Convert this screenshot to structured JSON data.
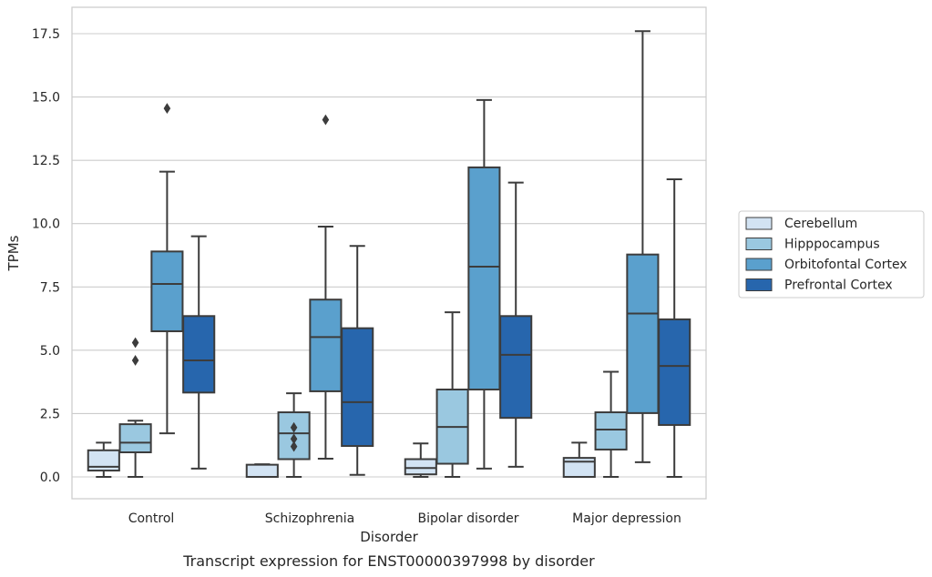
{
  "chart_data": {
    "type": "box",
    "title": "",
    "caption": "Transcript expression for ENST00000397998 by disorder",
    "xlabel": "Disorder",
    "ylabel": "TPMs",
    "ylim": [
      -0.8,
      18.5
    ],
    "yticks": [
      0.0,
      2.5,
      5.0,
      7.5,
      10.0,
      12.5,
      15.0,
      17.5
    ],
    "ytick_labels": [
      "0.0",
      "2.5",
      "5.0",
      "7.5",
      "10.0",
      "12.5",
      "15.0",
      "17.5"
    ],
    "grid": "horizontal",
    "legend_position": "right",
    "categories": [
      "Control",
      "Schizophrenia",
      "Bipolar disorder",
      "Major depression"
    ],
    "series": [
      {
        "name": "Cerebellum",
        "color": "#d2e3f3",
        "boxes": [
          {
            "whisker_low": 0.0,
            "q1": 0.25,
            "median": 0.4,
            "q3": 1.05,
            "whisker_high": 1.35,
            "outliers": []
          },
          {
            "whisker_low": 0.0,
            "q1": 0.0,
            "median": 0.0,
            "q3": 0.48,
            "whisker_high": 0.5,
            "outliers": []
          },
          {
            "whisker_low": 0.0,
            "q1": 0.1,
            "median": 0.35,
            "q3": 0.7,
            "whisker_high": 1.32,
            "outliers": []
          },
          {
            "whisker_low": 0.0,
            "q1": 0.0,
            "median": 0.6,
            "q3": 0.75,
            "whisker_high": 1.35,
            "outliers": []
          }
        ]
      },
      {
        "name": "Hipppocampus",
        "color": "#9ac8e0",
        "boxes": [
          {
            "whisker_low": 0.0,
            "q1": 0.97,
            "median": 1.35,
            "q3": 2.08,
            "whisker_high": 2.22,
            "outliers": [
              4.6,
              5.3
            ]
          },
          {
            "whisker_low": 0.0,
            "q1": 0.7,
            "median": 1.72,
            "q3": 2.55,
            "whisker_high": 3.3,
            "outliers": [
              1.2,
              1.5,
              1.95
            ]
          },
          {
            "whisker_low": 0.0,
            "q1": 0.52,
            "median": 1.97,
            "q3": 3.45,
            "whisker_high": 6.5,
            "outliers": []
          },
          {
            "whisker_low": 0.0,
            "q1": 1.08,
            "median": 1.87,
            "q3": 2.55,
            "whisker_high": 4.15,
            "outliers": []
          }
        ]
      },
      {
        "name": "Orbitofontal Cortex",
        "color": "#5aa0cd",
        "boxes": [
          {
            "whisker_low": 1.72,
            "q1": 5.75,
            "median": 7.62,
            "q3": 8.9,
            "whisker_high": 12.05,
            "outliers": [
              14.55
            ]
          },
          {
            "whisker_low": 0.72,
            "q1": 3.38,
            "median": 5.52,
            "q3": 7.0,
            "whisker_high": 9.88,
            "outliers": [
              14.1
            ]
          },
          {
            "whisker_low": 0.33,
            "q1": 3.45,
            "median": 8.3,
            "q3": 12.22,
            "whisker_high": 14.88,
            "outliers": []
          },
          {
            "whisker_low": 0.58,
            "q1": 2.52,
            "median": 6.45,
            "q3": 8.78,
            "whisker_high": 17.6,
            "outliers": []
          }
        ]
      },
      {
        "name": "Prefrontal Cortex",
        "color": "#2766ad",
        "boxes": [
          {
            "whisker_low": 0.33,
            "q1": 3.33,
            "median": 4.6,
            "q3": 6.35,
            "whisker_high": 9.5,
            "outliers": []
          },
          {
            "whisker_low": 0.08,
            "q1": 1.22,
            "median": 2.95,
            "q3": 5.87,
            "whisker_high": 9.12,
            "outliers": []
          },
          {
            "whisker_low": 0.4,
            "q1": 2.33,
            "median": 4.82,
            "q3": 6.35,
            "whisker_high": 11.62,
            "outliers": []
          },
          {
            "whisker_low": 0.0,
            "q1": 2.05,
            "median": 4.38,
            "q3": 6.22,
            "whisker_high": 11.75,
            "outliers": []
          }
        ]
      }
    ]
  }
}
